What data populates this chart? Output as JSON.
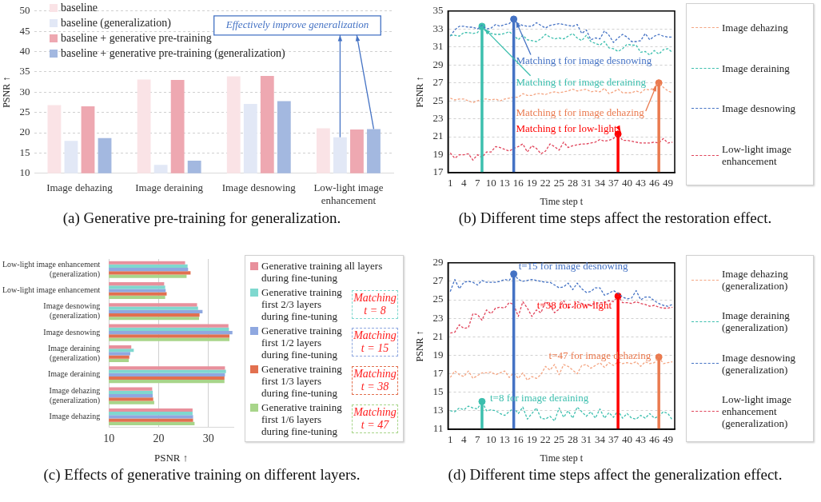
{
  "chart_data": [
    {
      "type": "bar",
      "title": "(a) Generative pre-training for generalization.",
      "ylabel": "PSNR ↑",
      "categories": [
        "Image dehazing",
        "Image deraining",
        "Image desnowing",
        "Low-light image enhancement"
      ],
      "series": [
        {
          "name": "baseline",
          "color": "#fae3e6",
          "values": [
            26.8,
            33.1,
            33.9,
            21.1
          ]
        },
        {
          "name": "baseline (generalization)",
          "color": "#e2e8f6",
          "values": [
            18.0,
            12.1,
            27.1,
            18.9
          ]
        },
        {
          "name": "baseline + generative pre-training",
          "color": "#eea8b1",
          "values": [
            26.5,
            33.0,
            34.0,
            20.8
          ]
        },
        {
          "name": "baseline + generative pre-training (generalization)",
          "color": "#a3b8e0",
          "values": [
            18.7,
            13.1,
            27.8,
            20.9
          ]
        }
      ],
      "ylim": [
        10,
        50
      ],
      "yticks": [
        10,
        15,
        20,
        25,
        30,
        35,
        40,
        45,
        50
      ],
      "grid": "y",
      "legend": "top left",
      "annotations": [
        "Effectively improve generalization"
      ]
    },
    {
      "type": "line",
      "title": "(b) Different time steps affect the restoration effect.",
      "xlabel": "Time step t",
      "ylabel": "PSNR ↑",
      "x": [
        1,
        2,
        3,
        4,
        5,
        6,
        7,
        8,
        9,
        10,
        11,
        12,
        13,
        14,
        15,
        16,
        17,
        18,
        19,
        20,
        21,
        22,
        23,
        24,
        25,
        26,
        27,
        28,
        29,
        30,
        31,
        32,
        33,
        34,
        35,
        36,
        37,
        38,
        39,
        40,
        41,
        42,
        43,
        44,
        45,
        46,
        47,
        48,
        49,
        50
      ],
      "series": [
        {
          "name": "Image dehazing",
          "color": "#f4a582",
          "values": [
            25.3,
            25.1,
            25.2,
            25.2,
            25.0,
            24.8,
            25.0,
            25.2,
            25.2,
            25.1,
            25.2,
            25.0,
            25.2,
            25.3,
            25.4,
            25.4,
            25.8,
            25.6,
            25.6,
            25.8,
            25.8,
            25.7,
            25.9,
            26.0,
            25.9,
            26.0,
            26.1,
            26.3,
            26.1,
            26.2,
            26.3,
            26.0,
            26.1,
            26.0,
            26.4,
            25.8,
            26.0,
            26.3,
            25.9,
            25.9,
            25.9,
            26.1,
            25.9,
            26.3,
            26.2,
            26.5,
            27.0,
            26.5,
            26.1,
            25.9
          ]
        },
        {
          "name": "Image deraining",
          "color": "#3cbfae",
          "values": [
            32.3,
            32.3,
            32.2,
            32.6,
            32.6,
            32.5,
            32.6,
            33.3,
            32.6,
            32.5,
            32.4,
            32.4,
            32.5,
            32.7,
            32.3,
            31.8,
            32.3,
            31.8,
            31.7,
            31.6,
            31.9,
            32.4,
            32.1,
            31.9,
            32.0,
            31.9,
            32.2,
            32.5,
            32.0,
            31.7,
            32.3,
            31.6,
            31.4,
            31.2,
            31.6,
            30.9,
            30.8,
            30.5,
            30.8,
            31.3,
            31.2,
            31.2,
            30.4,
            30.5,
            30.1,
            30.6,
            30.2,
            30.7,
            30.8,
            30.4
          ]
        },
        {
          "name": "Image desnowing",
          "color": "#4472c4",
          "values": [
            32.2,
            32.9,
            33.3,
            33.3,
            33.2,
            33.2,
            33.0,
            33.4,
            33.0,
            33.1,
            33.5,
            33.3,
            33.5,
            33.6,
            34.1,
            33.6,
            33.4,
            33.3,
            33.3,
            33.7,
            33.4,
            33.1,
            33.4,
            33.5,
            33.6,
            33.5,
            33.4,
            33.3,
            33.5,
            32.5,
            32.9,
            31.8,
            32.0,
            31.9,
            32.8,
            32.3,
            31.5,
            32.0,
            32.4,
            32.1,
            31.6,
            31.6,
            31.7,
            32.5,
            31.8,
            32.2,
            32.4,
            32.2,
            32.1,
            32.1
          ]
        },
        {
          "name": "Low-light image enhancement",
          "color": "#e0435a",
          "values": [
            19.2,
            18.6,
            19.0,
            19.0,
            19.1,
            18.4,
            19.0,
            18.7,
            19.3,
            19.3,
            19.9,
            19.8,
            19.6,
            19.4,
            19.7,
            19.9,
            20.2,
            19.3,
            20.0,
            19.7,
            19.1,
            19.4,
            20.2,
            19.9,
            19.5,
            20.4,
            19.8,
            20.0,
            20.1,
            20.2,
            20.2,
            20.3,
            20.4,
            20.7,
            20.5,
            20.6,
            20.8,
            21.3,
            20.6,
            20.6,
            20.5,
            20.4,
            20.3,
            20.3,
            20.3,
            20.4,
            20.3,
            20.8,
            20.3,
            20.4
          ]
        },
        {
          "type": "lollipop",
          "marker": "circle",
          "color": "#3cbfae",
          "x": [
            8
          ],
          "values": [
            33.3
          ]
        },
        {
          "type": "lollipop",
          "marker": "circle",
          "color": "#4472c4",
          "x": [
            15
          ],
          "values": [
            34.1
          ]
        },
        {
          "type": "lollipop",
          "marker": "circle",
          "color": "#ff0000",
          "x": [
            38
          ],
          "values": [
            21.3
          ]
        },
        {
          "type": "lollipop",
          "marker": "circle",
          "color": "#ea7a4f",
          "x": [
            47
          ],
          "values": [
            27.0
          ]
        }
      ],
      "xlim": [
        0.5,
        50.5
      ],
      "xticks": [
        1,
        4,
        7,
        10,
        13,
        16,
        19,
        22,
        25,
        28,
        31,
        34,
        37,
        40,
        43,
        46,
        49
      ],
      "ylim": [
        17,
        35
      ],
      "yticks": [
        17,
        19,
        21,
        23,
        25,
        27,
        29,
        31,
        33,
        35
      ],
      "grid": "y",
      "legend": "right",
      "line_style": "dashed",
      "marker": "none",
      "annotations": [
        {
          "text": "Matching t for image desnowing",
          "x": 15,
          "y": 34.1
        },
        {
          "text": "Matching t for image deraining",
          "x": 8,
          "y": 33.3
        },
        {
          "text": "Matching t for image dehazing",
          "x": 47,
          "y": 27.0
        },
        {
          "text": "Matching t for low-light",
          "x": 38,
          "y": 21.3
        }
      ]
    },
    {
      "type": "bar",
      "orientation": "horizontal",
      "title": "(c) Effects of generative training on different layers.",
      "xlabel": "PSNR ↑",
      "categories": [
        "Low-light image enhancement (generalization)",
        "Low-light image enhancement",
        "Image desnowing (generalization)",
        "Image desnowing",
        "Image deraining (generalization)",
        "Image deraining",
        "Image dehazing (generalization)",
        "Image dehazing"
      ],
      "series": [
        {
          "name": "Generative training all layers during fine-tuning",
          "color": "#e8909c",
          "values": [
            25.3,
            21.1,
            27.7,
            34.0,
            14.5,
            33.3,
            18.7,
            26.8
          ]
        },
        {
          "name": "Generative training first 2/3 layers during fine-tuning",
          "color": "#7fd8cf",
          "values": [
            25.8,
            21.3,
            27.9,
            34.1,
            15.0,
            33.5,
            18.8,
            26.8
          ]
        },
        {
          "name": "Generative training first 1/2 layers during fine-tuning",
          "color": "#8fa8e0",
          "values": [
            25.9,
            21.4,
            28.8,
            34.8,
            14.3,
            33.3,
            18.8,
            26.9
          ]
        },
        {
          "name": "Generative training first 1/3 layers during fine-tuning",
          "color": "#e2704f",
          "values": [
            26.4,
            21.6,
            28.2,
            34.2,
            14.1,
            33.2,
            18.9,
            26.9
          ]
        },
        {
          "name": "Generative training first 1/6 layers during fine-tuning",
          "color": "#a8d58a",
          "values": [
            25.6,
            21.3,
            28.1,
            34.2,
            14.0,
            33.2,
            19.1,
            27.2
          ]
        }
      ],
      "xlim": [
        10,
        35
      ],
      "xticks": [
        10,
        20,
        30
      ],
      "grid": "x",
      "legend": "right",
      "annotations": [
        "Matching t = 8",
        "Matching t = 15",
        "Matching t = 38",
        "Matching t = 47"
      ]
    },
    {
      "type": "line",
      "title": "(d) Different time steps affect the generalization effect.",
      "xlabel": "Time step t",
      "ylabel": "PSNR ↑",
      "x": [
        1,
        2,
        3,
        4,
        5,
        6,
        7,
        8,
        9,
        10,
        11,
        12,
        13,
        14,
        15,
        16,
        17,
        18,
        19,
        20,
        21,
        22,
        23,
        24,
        25,
        26,
        27,
        28,
        29,
        30,
        31,
        32,
        33,
        34,
        35,
        36,
        37,
        38,
        39,
        40,
        41,
        42,
        43,
        44,
        45,
        46,
        47,
        48,
        49,
        50
      ],
      "series": [
        {
          "name": "Image dehazing (generalization)",
          "color": "#f4a582",
          "values": [
            16.6,
            17.3,
            16.9,
            16.7,
            17.3,
            16.5,
            16.8,
            17.1,
            17.1,
            17.2,
            16.9,
            17.1,
            17.3,
            16.6,
            17.1,
            16.5,
            17.1,
            16.3,
            16.7,
            16.5,
            16.9,
            17.8,
            17.4,
            18.0,
            16.9,
            18.0,
            17.8,
            17.4,
            17.0,
            17.9,
            18.0,
            17.6,
            17.9,
            18.2,
            17.7,
            18.2,
            17.9,
            18.3,
            18.1,
            18.2,
            18.1,
            18.3,
            17.8,
            18.3,
            18.1,
            18.2,
            18.8,
            18.1,
            18.2,
            18.3
          ]
        },
        {
          "name": "Image deraining (generalization)",
          "color": "#3cbfae",
          "values": [
            13.0,
            12.9,
            13.3,
            13.1,
            13.5,
            13.3,
            13.2,
            14.0,
            13.0,
            13.1,
            13.0,
            12.7,
            12.5,
            12.9,
            13.3,
            12.7,
            13.4,
            12.1,
            12.7,
            13.3,
            12.2,
            12.1,
            12.4,
            11.9,
            13.3,
            12.3,
            13.0,
            12.2,
            13.4,
            12.9,
            12.4,
            12.9,
            12.2,
            13.2,
            12.2,
            12.8,
            12.3,
            13.0,
            12.2,
            12.7,
            12.2,
            12.1,
            12.5,
            12.2,
            12.7,
            12.2,
            12.4,
            12.9,
            12.7,
            12.0
          ]
        },
        {
          "name": "Image desnowing (generalization)",
          "color": "#4472c4",
          "values": [
            25.9,
            27.2,
            26.2,
            26.9,
            27.0,
            26.9,
            26.6,
            27.1,
            26.9,
            26.9,
            26.9,
            27.0,
            27.2,
            27.1,
            27.8,
            27.2,
            27.0,
            27.1,
            27.2,
            27.1,
            27.0,
            26.9,
            26.9,
            26.6,
            26.3,
            26.4,
            26.8,
            26.1,
            26.8,
            26.2,
            25.8,
            25.9,
            26.3,
            26.3,
            25.5,
            25.7,
            26.0,
            25.7,
            25.3,
            25.1,
            25.2,
            26.0,
            25.0,
            25.3,
            25.3,
            24.9,
            24.6,
            24.4,
            24.3,
            24.5
          ]
        },
        {
          "name": "Low-light image enhancement (generalization)",
          "color": "#e0435a",
          "values": [
            21.4,
            21.5,
            22.3,
            21.9,
            22.0,
            23.5,
            23.4,
            22.8,
            23.9,
            23.5,
            24.1,
            24.2,
            24.1,
            24.7,
            24.5,
            23.2,
            24.8,
            24.1,
            23.2,
            23.9,
            23.6,
            24.8,
            24.4,
            23.6,
            24.0,
            24.9,
            24.2,
            24.2,
            24.8,
            24.6,
            24.4,
            24.5,
            24.6,
            24.7,
            24.7,
            24.9,
            24.8,
            25.4,
            24.7,
            24.7,
            24.6,
            24.8,
            24.6,
            24.5,
            24.3,
            24.4,
            24.2,
            24.1,
            24.1,
            24.2
          ]
        },
        {
          "type": "lollipop",
          "marker": "circle",
          "color": "#3cbfae",
          "x": [
            8
          ],
          "values": [
            14.0
          ]
        },
        {
          "type": "lollipop",
          "marker": "circle",
          "color": "#4472c4",
          "x": [
            15
          ],
          "values": [
            27.8
          ]
        },
        {
          "type": "lollipop",
          "marker": "circle",
          "color": "#ff0000",
          "x": [
            38
          ],
          "values": [
            25.4
          ]
        },
        {
          "type": "lollipop",
          "marker": "circle",
          "color": "#ea7a4f",
          "x": [
            47
          ],
          "values": [
            18.8
          ]
        }
      ],
      "xlim": [
        0.5,
        50.5
      ],
      "xticks": [
        1,
        4,
        7,
        10,
        13,
        16,
        19,
        22,
        25,
        28,
        31,
        34,
        37,
        40,
        43,
        46,
        49
      ],
      "ylim": [
        11,
        29
      ],
      "yticks": [
        11,
        13,
        15,
        17,
        19,
        21,
        23,
        25,
        27,
        29
      ],
      "grid": "y",
      "legend": "right",
      "line_style": "dashed",
      "marker": "none",
      "annotations": [
        {
          "text": "t=15 for image desnowing",
          "x": 15,
          "y": 27.8
        },
        {
          "text": "t=38 for low-light",
          "x": 38,
          "y": 25.4
        },
        {
          "text": "t=47 for image dehazing",
          "x": 47,
          "y": 18.8
        },
        {
          "text": "t=8 for image deraining",
          "x": 8,
          "y": 14.0
        }
      ]
    }
  ]
}
